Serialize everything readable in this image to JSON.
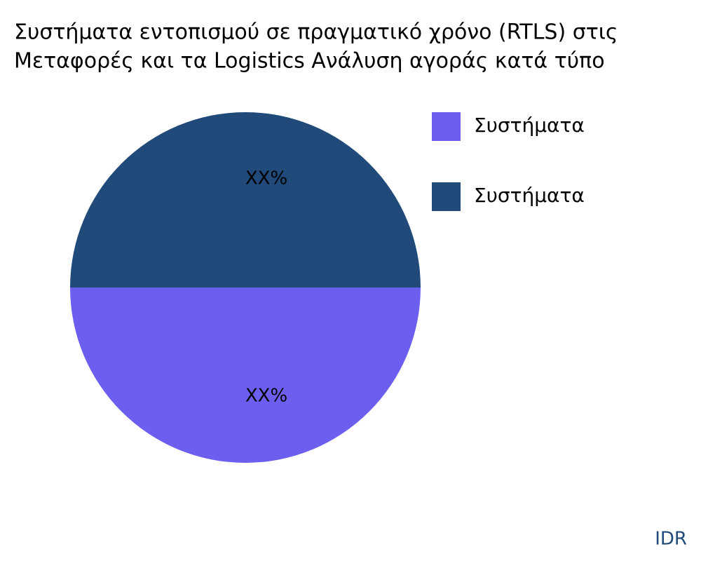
{
  "chart_data": {
    "type": "pie",
    "title": [
      "Συστήματα εντοπισμού σε πραγματικό χρόνο (RTLS) στις",
      "Μεταφορές και τα Logistics Ανάλυση αγοράς κατά τύπο"
    ],
    "categories": [
      "Συστήματα",
      "Συστήματα"
    ],
    "values": [
      50,
      50
    ],
    "value_labels": [
      "XX%",
      "XX%"
    ],
    "colors": [
      "#6c5ff0",
      "#1f4a7a"
    ],
    "legend": "top-right"
  },
  "watermark": "IDR"
}
